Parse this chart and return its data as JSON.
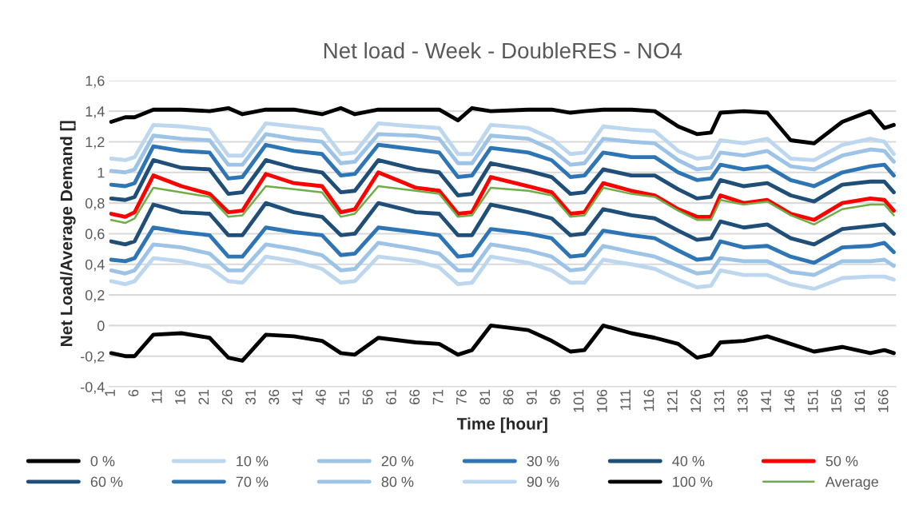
{
  "chart_data": {
    "type": "line",
    "title": "Net load - Week - DoubleRES - NO4",
    "xlabel": "Time [hour]",
    "ylabel": "Net Load/Average Demand []",
    "x": [
      1,
      4,
      6,
      10,
      16,
      22,
      26,
      29,
      34,
      40,
      46,
      50,
      53,
      58,
      66,
      71,
      75,
      78,
      82,
      90,
      95,
      99,
      102,
      106,
      112,
      117,
      122,
      126,
      129,
      131,
      136,
      141,
      146,
      151,
      157,
      163,
      166,
      168
    ],
    "series": [
      {
        "name": "0 %",
        "color": "#000000",
        "values": [
          -0.18,
          -0.2,
          -0.2,
          -0.06,
          -0.05,
          -0.08,
          -0.21,
          -0.23,
          -0.06,
          -0.07,
          -0.1,
          -0.18,
          -0.19,
          -0.08,
          -0.11,
          -0.12,
          -0.19,
          -0.16,
          0.0,
          -0.03,
          -0.1,
          -0.17,
          -0.16,
          0.0,
          -0.05,
          -0.08,
          -0.12,
          -0.21,
          -0.19,
          -0.11,
          -0.1,
          -0.07,
          -0.12,
          -0.17,
          -0.14,
          -0.18,
          -0.16,
          -0.18
        ]
      },
      {
        "name": "10 %",
        "color": "#bdd7ee",
        "values": [
          0.29,
          0.27,
          0.29,
          0.44,
          0.42,
          0.38,
          0.29,
          0.28,
          0.45,
          0.42,
          0.37,
          0.28,
          0.29,
          0.45,
          0.42,
          0.38,
          0.27,
          0.28,
          0.45,
          0.41,
          0.36,
          0.28,
          0.28,
          0.43,
          0.4,
          0.37,
          0.3,
          0.25,
          0.26,
          0.36,
          0.33,
          0.33,
          0.27,
          0.24,
          0.31,
          0.32,
          0.32,
          0.3
        ]
      },
      {
        "name": "20 %",
        "color": "#9dc3e6",
        "values": [
          0.36,
          0.34,
          0.36,
          0.53,
          0.51,
          0.47,
          0.36,
          0.36,
          0.53,
          0.5,
          0.46,
          0.36,
          0.37,
          0.54,
          0.5,
          0.47,
          0.36,
          0.36,
          0.53,
          0.49,
          0.45,
          0.36,
          0.37,
          0.52,
          0.48,
          0.45,
          0.39,
          0.34,
          0.35,
          0.44,
          0.42,
          0.42,
          0.35,
          0.33,
          0.42,
          0.42,
          0.43,
          0.39
        ]
      },
      {
        "name": "30 %",
        "color": "#2e75b6",
        "values": [
          0.43,
          0.42,
          0.44,
          0.64,
          0.61,
          0.59,
          0.45,
          0.45,
          0.64,
          0.61,
          0.59,
          0.46,
          0.47,
          0.64,
          0.61,
          0.59,
          0.45,
          0.46,
          0.63,
          0.6,
          0.57,
          0.45,
          0.46,
          0.62,
          0.59,
          0.57,
          0.49,
          0.43,
          0.44,
          0.55,
          0.51,
          0.52,
          0.45,
          0.41,
          0.51,
          0.52,
          0.54,
          0.48
        ]
      },
      {
        "name": "40 %",
        "color": "#1f4e79",
        "values": [
          0.55,
          0.53,
          0.55,
          0.79,
          0.74,
          0.73,
          0.59,
          0.59,
          0.8,
          0.74,
          0.71,
          0.59,
          0.6,
          0.8,
          0.74,
          0.73,
          0.59,
          0.59,
          0.79,
          0.74,
          0.7,
          0.59,
          0.6,
          0.76,
          0.72,
          0.7,
          0.62,
          0.56,
          0.57,
          0.68,
          0.64,
          0.66,
          0.57,
          0.53,
          0.63,
          0.65,
          0.66,
          0.6
        ]
      },
      {
        "name": "50 %",
        "color": "#ff0000",
        "values": [
          0.73,
          0.71,
          0.74,
          0.98,
          0.91,
          0.86,
          0.74,
          0.75,
          0.99,
          0.93,
          0.91,
          0.74,
          0.76,
          1.0,
          0.9,
          0.88,
          0.73,
          0.74,
          0.97,
          0.91,
          0.87,
          0.73,
          0.74,
          0.93,
          0.88,
          0.85,
          0.76,
          0.71,
          0.71,
          0.85,
          0.8,
          0.82,
          0.73,
          0.69,
          0.8,
          0.83,
          0.82,
          0.75
        ]
      },
      {
        "name": "60 %",
        "color": "#1f4e79",
        "values": [
          0.83,
          0.82,
          0.84,
          1.08,
          1.03,
          1.02,
          0.86,
          0.87,
          1.08,
          1.03,
          1.0,
          0.87,
          0.88,
          1.08,
          1.02,
          1.0,
          0.85,
          0.86,
          1.06,
          1.01,
          0.97,
          0.86,
          0.87,
          1.02,
          0.98,
          0.98,
          0.89,
          0.83,
          0.84,
          0.95,
          0.91,
          0.93,
          0.85,
          0.81,
          0.92,
          0.94,
          0.94,
          0.87
        ]
      },
      {
        "name": "70 %",
        "color": "#2e75b6",
        "values": [
          0.92,
          0.91,
          0.93,
          1.17,
          1.14,
          1.13,
          0.96,
          0.97,
          1.18,
          1.14,
          1.12,
          0.98,
          0.99,
          1.18,
          1.15,
          1.13,
          0.97,
          0.98,
          1.16,
          1.13,
          1.08,
          0.97,
          0.98,
          1.13,
          1.1,
          1.1,
          1.0,
          0.95,
          0.96,
          1.05,
          1.02,
          1.04,
          0.95,
          0.91,
          1.0,
          1.04,
          1.05,
          0.98
        ]
      },
      {
        "name": "80 %",
        "color": "#9dc3e6",
        "values": [
          1.01,
          1.0,
          1.02,
          1.24,
          1.22,
          1.21,
          1.05,
          1.05,
          1.25,
          1.22,
          1.2,
          1.06,
          1.07,
          1.25,
          1.24,
          1.22,
          1.06,
          1.06,
          1.24,
          1.22,
          1.15,
          1.05,
          1.06,
          1.22,
          1.2,
          1.19,
          1.08,
          1.02,
          1.03,
          1.13,
          1.11,
          1.14,
          1.04,
          1.02,
          1.11,
          1.15,
          1.14,
          1.07
        ]
      },
      {
        "name": "90 %",
        "color": "#bdd7ee",
        "values": [
          1.09,
          1.08,
          1.1,
          1.31,
          1.3,
          1.28,
          1.11,
          1.11,
          1.32,
          1.3,
          1.28,
          1.12,
          1.13,
          1.32,
          1.3,
          1.29,
          1.12,
          1.12,
          1.31,
          1.29,
          1.22,
          1.12,
          1.13,
          1.3,
          1.28,
          1.27,
          1.14,
          1.09,
          1.1,
          1.21,
          1.19,
          1.22,
          1.09,
          1.08,
          1.18,
          1.22,
          1.2,
          1.12
        ]
      },
      {
        "name": "100 %",
        "color": "#000000",
        "values": [
          1.33,
          1.36,
          1.36,
          1.41,
          1.41,
          1.4,
          1.42,
          1.38,
          1.41,
          1.41,
          1.38,
          1.42,
          1.38,
          1.41,
          1.41,
          1.41,
          1.34,
          1.42,
          1.4,
          1.41,
          1.41,
          1.39,
          1.4,
          1.41,
          1.41,
          1.4,
          1.3,
          1.25,
          1.26,
          1.39,
          1.4,
          1.39,
          1.21,
          1.19,
          1.33,
          1.4,
          1.29,
          1.31
        ]
      },
      {
        "name": "Average",
        "color": "#70ad47",
        "values": [
          0.69,
          0.67,
          0.7,
          0.9,
          0.87,
          0.84,
          0.71,
          0.72,
          0.91,
          0.89,
          0.87,
          0.71,
          0.73,
          0.91,
          0.88,
          0.86,
          0.71,
          0.72,
          0.9,
          0.88,
          0.85,
          0.71,
          0.72,
          0.9,
          0.86,
          0.84,
          0.75,
          0.69,
          0.69,
          0.82,
          0.79,
          0.81,
          0.72,
          0.66,
          0.76,
          0.79,
          0.79,
          0.72
        ]
      }
    ],
    "xlim": [
      0.5,
      168.5
    ],
    "xticks": [
      1,
      6,
      11,
      16,
      21,
      26,
      31,
      36,
      41,
      46,
      51,
      56,
      61,
      66,
      71,
      76,
      81,
      86,
      91,
      96,
      101,
      106,
      111,
      116,
      121,
      126,
      131,
      136,
      141,
      146,
      151,
      156,
      161,
      166
    ],
    "ylim": [
      -0.4,
      1.6
    ],
    "yticks": [
      {
        "value": -0.4,
        "label": "-0,4"
      },
      {
        "value": -0.2,
        "label": "-0,2"
      },
      0,
      {
        "value": 0.2,
        "label": "0,2"
      },
      {
        "value": 0.4,
        "label": "0,4"
      },
      {
        "value": 0.6,
        "label": "0,6"
      },
      {
        "value": 0.8,
        "label": "0,8"
      },
      1,
      {
        "value": 1.2,
        "label": "1,2"
      },
      {
        "value": 1.4,
        "label": "1,4"
      },
      {
        "value": 1.6,
        "label": "1,6"
      }
    ],
    "grid": "y",
    "legend": "bottom",
    "marker": "none",
    "line_style": "solid"
  }
}
